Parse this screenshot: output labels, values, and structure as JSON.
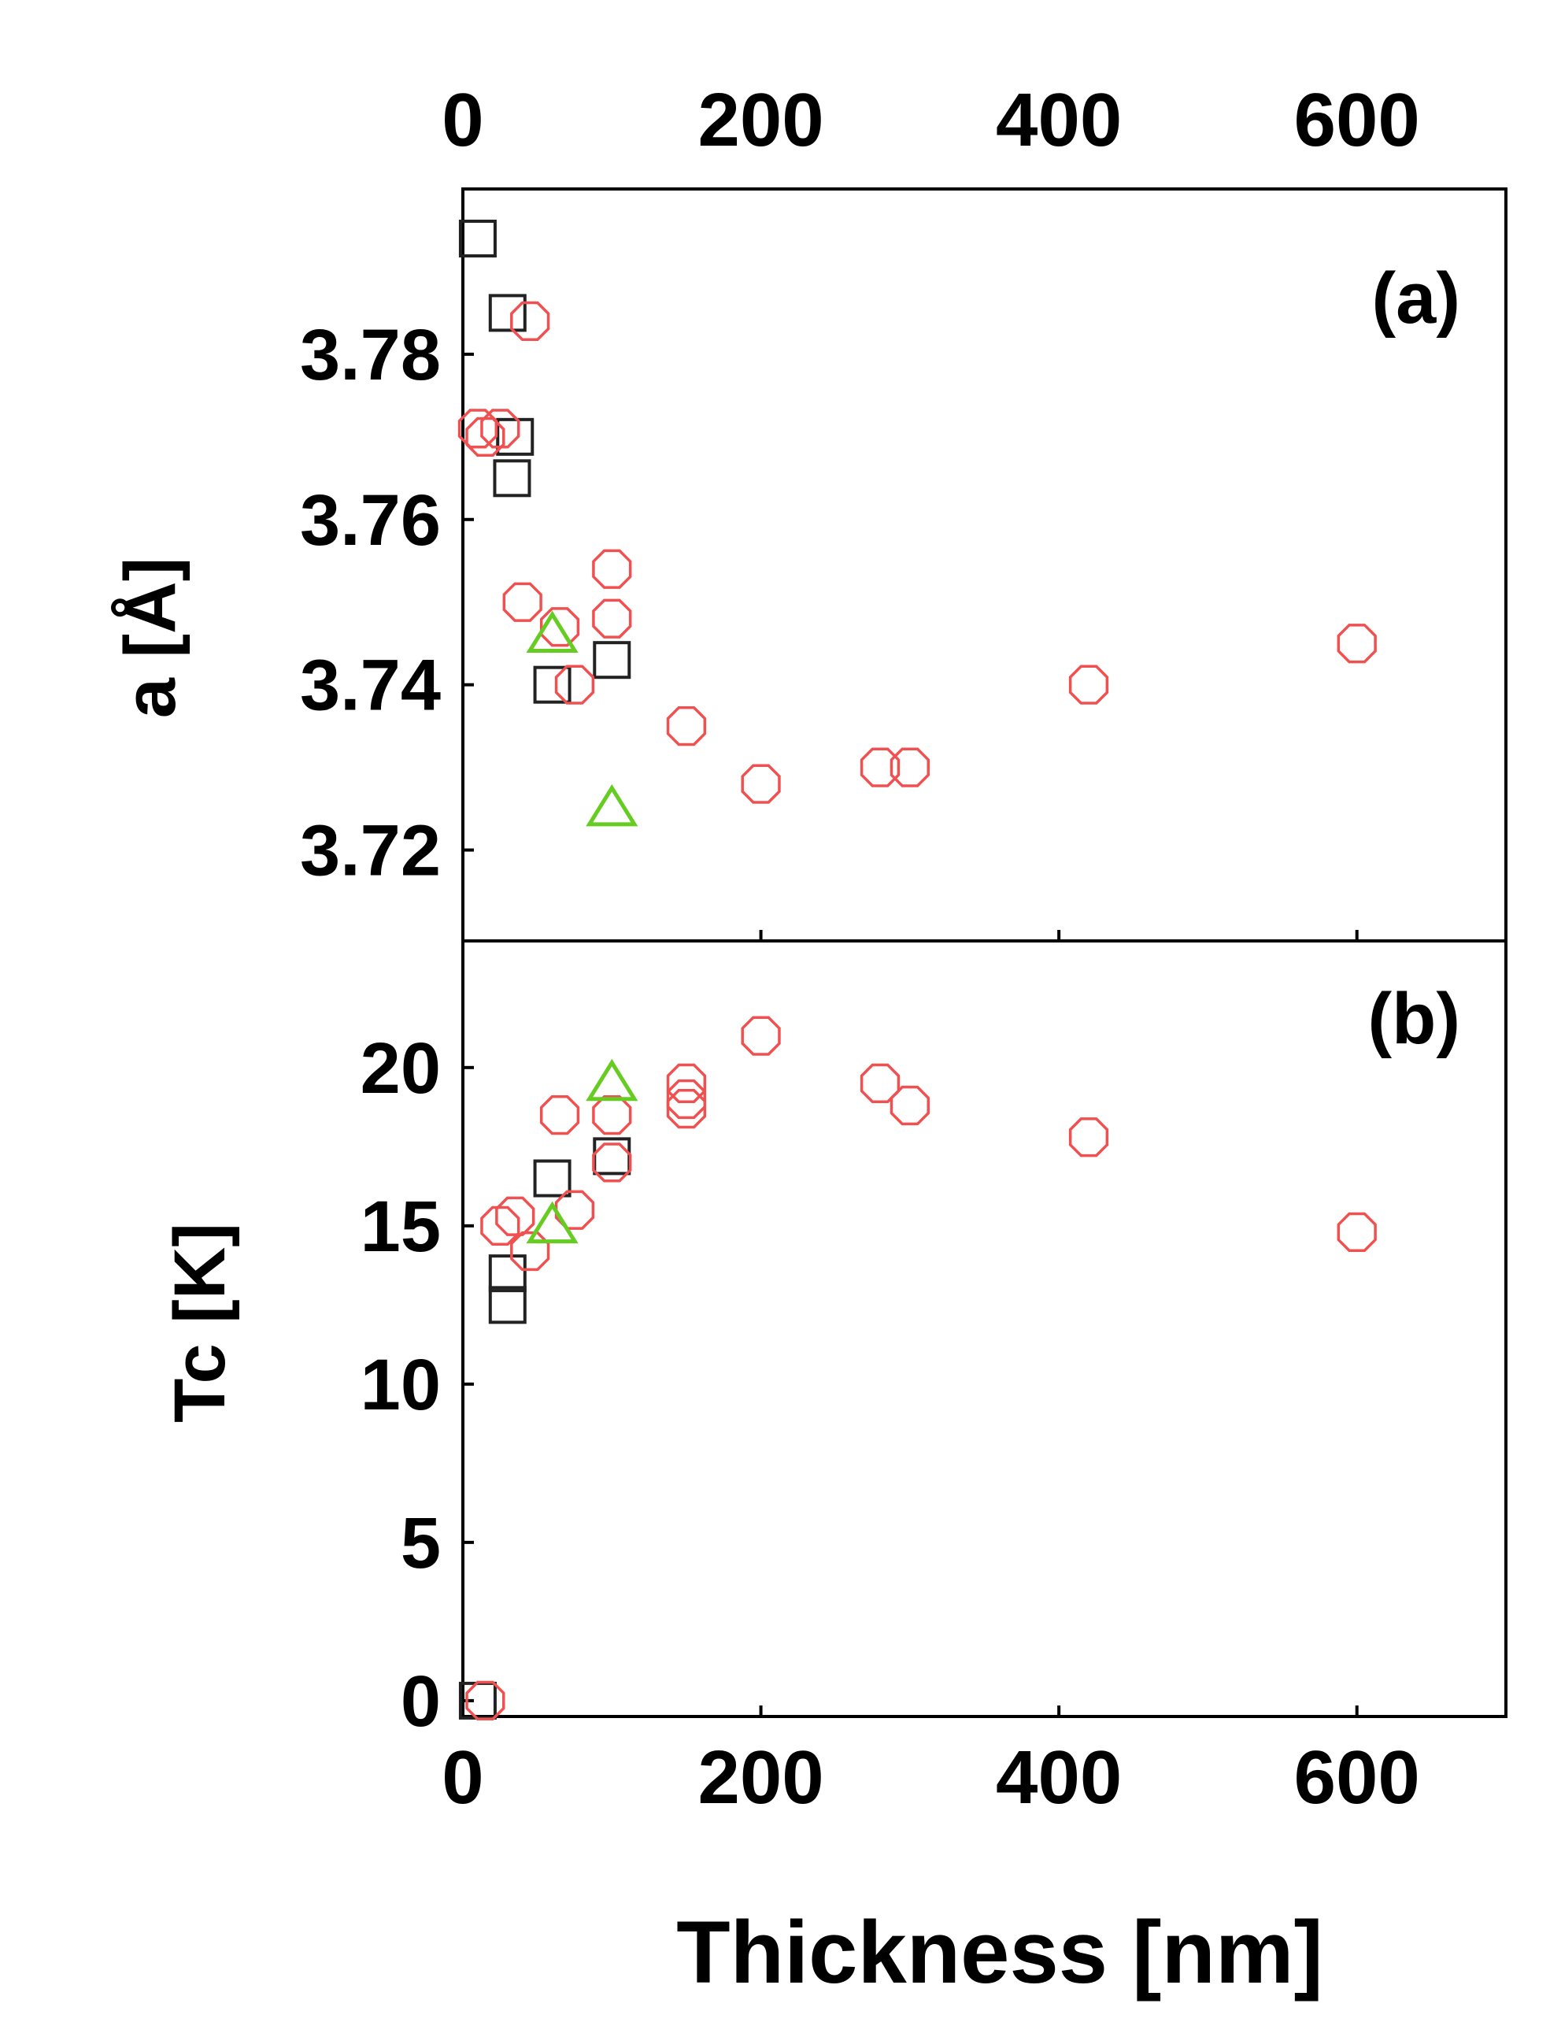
{
  "chart_data": [
    {
      "panel": "a",
      "type": "scatter",
      "panel_label": "(a)",
      "ylabel": "a [Å]",
      "xlabel": "",
      "top_axis_ticks": [
        "0",
        "200",
        "400",
        "600"
      ],
      "x_ticks": [
        0,
        200,
        400,
        600
      ],
      "y_ticks": [
        3.72,
        3.74,
        3.76,
        3.78
      ],
      "y_tick_labels": [
        "3.72",
        "3.74",
        "3.76",
        "3.78"
      ],
      "xlim": [
        0,
        700
      ],
      "ylim": [
        3.709,
        3.8
      ],
      "grid": false,
      "series": [
        {
          "marker": "square",
          "color": "#222222",
          "points": [
            [
              10,
              3.794
            ],
            [
              30,
              3.785
            ],
            [
              35,
              3.77
            ],
            [
              33,
              3.765
            ],
            [
              60,
              3.74
            ],
            [
              100,
              3.743
            ]
          ]
        },
        {
          "marker": "hexagon",
          "color": "#f05050",
          "points": [
            [
              10,
              3.771
            ],
            [
              15,
              3.77
            ],
            [
              25,
              3.771
            ],
            [
              45,
              3.784
            ],
            [
              40,
              3.75
            ],
            [
              65,
              3.747
            ],
            [
              75,
              3.74
            ],
            [
              100,
              3.754
            ],
            [
              100,
              3.748
            ],
            [
              150,
              3.735
            ],
            [
              200,
              3.728
            ],
            [
              280,
              3.73
            ],
            [
              300,
              3.73
            ],
            [
              420,
              3.74
            ],
            [
              600,
              3.745
            ]
          ]
        },
        {
          "marker": "triangle",
          "color": "#66cc22",
          "points": [
            [
              60,
              3.746
            ],
            [
              100,
              3.725
            ]
          ]
        }
      ]
    },
    {
      "panel": "b",
      "type": "scatter",
      "panel_label": "(b)",
      "ylabel": "Tc [K]",
      "xlabel": "Thickness [nm]",
      "x_ticks": [
        0,
        200,
        400,
        600
      ],
      "x_tick_labels": [
        "0",
        "200",
        "400",
        "600"
      ],
      "y_ticks": [
        0,
        5,
        10,
        15,
        20
      ],
      "y_tick_labels": [
        "0",
        "5",
        "10",
        "15",
        "20"
      ],
      "xlim": [
        0,
        700
      ],
      "ylim": [
        -0.5,
        24
      ],
      "grid": false,
      "series": [
        {
          "marker": "square",
          "color": "#222222",
          "points": [
            [
              10,
              0
            ],
            [
              30,
              13.5
            ],
            [
              30,
              12.5
            ],
            [
              60,
              16.5
            ],
            [
              100,
              17.2
            ]
          ]
        },
        {
          "marker": "hexagon",
          "color": "#f05050",
          "points": [
            [
              15,
              0
            ],
            [
              25,
              15
            ],
            [
              35,
              15.3
            ],
            [
              45,
              14.2
            ],
            [
              65,
              18.5
            ],
            [
              75,
              15.5
            ],
            [
              100,
              17
            ],
            [
              100,
              18.5
            ],
            [
              150,
              19.5
            ],
            [
              150,
              19
            ],
            [
              150,
              18.7
            ],
            [
              200,
              21
            ],
            [
              280,
              19.5
            ],
            [
              300,
              18.8
            ],
            [
              420,
              17.8
            ],
            [
              600,
              14.8
            ]
          ]
        },
        {
          "marker": "triangle",
          "color": "#66cc22",
          "points": [
            [
              60,
              15
            ],
            [
              100,
              19.5
            ]
          ]
        }
      ]
    }
  ]
}
